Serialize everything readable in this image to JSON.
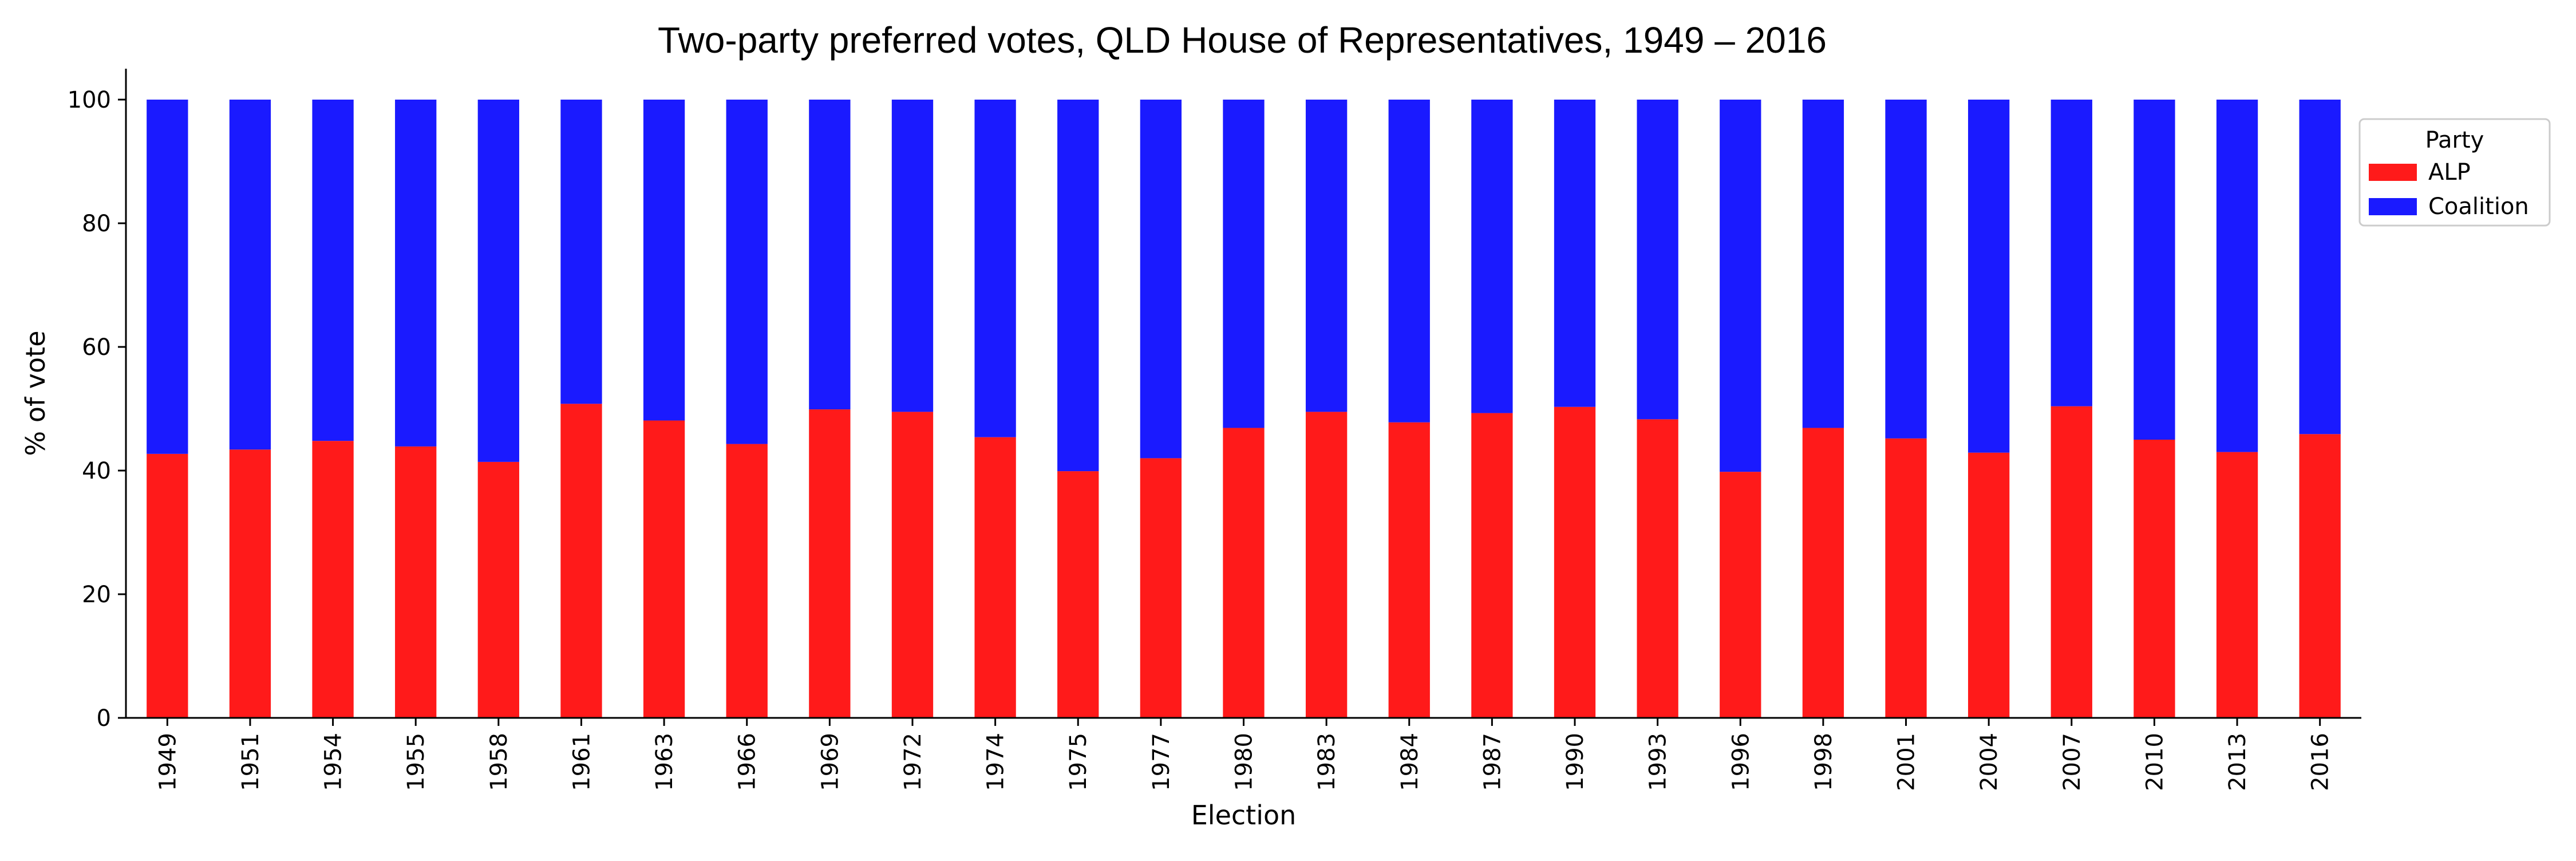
{
  "chart_data": {
    "type": "bar",
    "stacked": true,
    "title": "Two-party preferred votes, QLD House of Representatives, 1949 – 2016",
    "xlabel": "Election",
    "ylabel": "% of vote",
    "ylim": [
      0,
      105
    ],
    "yticks": [
      0,
      20,
      40,
      60,
      80,
      100
    ],
    "grid": false,
    "legend": {
      "title": "Party",
      "placement": "right",
      "entries": [
        "ALP",
        "Coalition"
      ]
    },
    "categories": [
      "1949",
      "1951",
      "1954",
      "1955",
      "1958",
      "1961",
      "1963",
      "1966",
      "1969",
      "1972",
      "1974",
      "1975",
      "1977",
      "1980",
      "1983",
      "1984",
      "1987",
      "1990",
      "1993",
      "1996",
      "1998",
      "2001",
      "2004",
      "2007",
      "2010",
      "2013",
      "2016"
    ],
    "series": [
      {
        "name": "ALP",
        "color": "#ff1a1a",
        "values": [
          42.7,
          43.4,
          44.8,
          43.9,
          41.4,
          50.8,
          48.1,
          44.3,
          49.9,
          49.5,
          45.4,
          39.9,
          42.0,
          46.9,
          49.5,
          47.8,
          49.3,
          50.3,
          48.3,
          39.8,
          46.9,
          45.2,
          42.9,
          50.4,
          45.0,
          43.0,
          45.9
        ]
      },
      {
        "name": "Coalition",
        "color": "#1a1aff",
        "values": [
          57.3,
          56.6,
          55.2,
          56.1,
          58.6,
          49.2,
          51.9,
          55.7,
          50.1,
          50.5,
          54.6,
          60.1,
          58.0,
          53.1,
          50.5,
          52.2,
          50.7,
          49.7,
          51.7,
          60.2,
          53.1,
          54.8,
          57.1,
          49.6,
          55.0,
          57.0,
          54.1
        ]
      }
    ]
  }
}
